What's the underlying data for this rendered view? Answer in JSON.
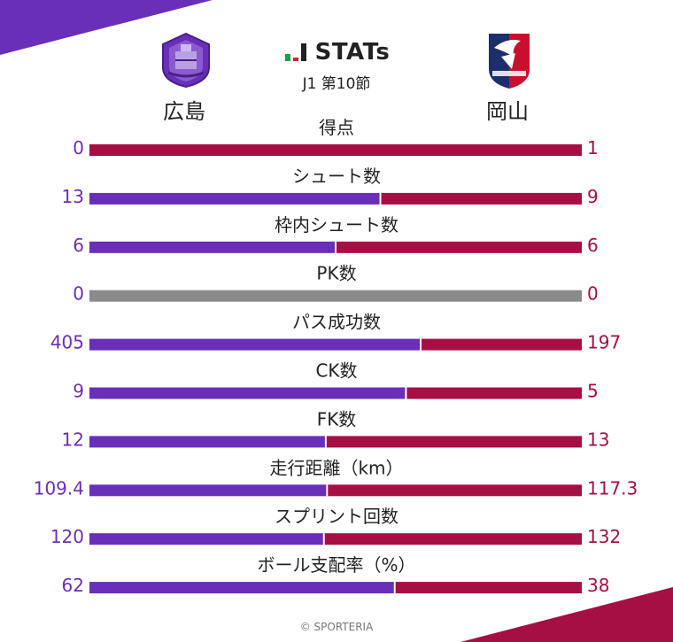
{
  "header": {
    "title": "STATs",
    "subtitle": "J1 第10節",
    "home_team": "広島",
    "away_team": "岡山"
  },
  "colors": {
    "home": "#6a2fb8",
    "away": "#a50f43",
    "neutral": "#8a8a8a"
  },
  "chart_data": {
    "type": "bar",
    "categories": [
      "得点",
      "シュート数",
      "枠内シュート数",
      "PK数",
      "パス成功数",
      "CK数",
      "FK数",
      "走行距離（km）",
      "スプリント回数",
      "ボール支配率（%）"
    ],
    "series": [
      {
        "name": "広島",
        "values": [
          "0",
          "13",
          "6",
          "0",
          "405",
          "9",
          "12",
          "109.4",
          "120",
          "62"
        ]
      },
      {
        "name": "岡山",
        "values": [
          "1",
          "9",
          "6",
          "0",
          "197",
          "5",
          "13",
          "117.3",
          "132",
          "38"
        ]
      }
    ]
  },
  "footer": {
    "copyright": "© SPORTERIA"
  }
}
